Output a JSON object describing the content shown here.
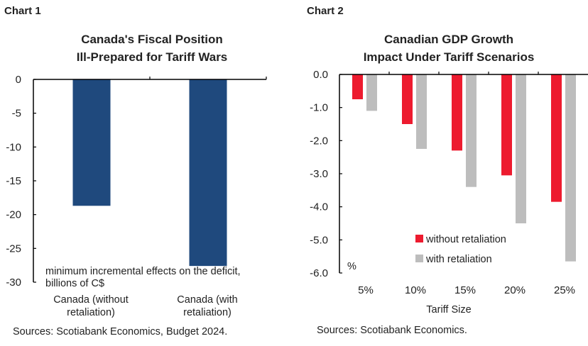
{
  "chart_data": [
    {
      "header": "Chart 1",
      "type": "bar",
      "title": [
        "Canada's Fiscal Position",
        "Ill-Prepared for Tariff Wars"
      ],
      "categories": [
        [
          "Canada (without",
          "retaliation)"
        ],
        [
          "Canada (with",
          "retaliation)"
        ]
      ],
      "values": [
        -18.7,
        -27.6
      ],
      "ylim": [
        -30,
        0
      ],
      "yticks": [
        "0",
        "-5",
        "-10",
        "-15",
        "-20",
        "-25",
        "-30"
      ],
      "ytick_values": [
        0,
        -5,
        -10,
        -15,
        -20,
        -25,
        -30
      ],
      "annotation": [
        "minimum incremental effects on the deficit,",
        "billions of C$"
      ],
      "grid": false,
      "color": "#1f497d",
      "source": "Sources: Scotiabank Economics, Budget 2024."
    },
    {
      "header": "Chart 2",
      "type": "bar",
      "title": [
        "Canadian GDP Growth",
        "Impact Under Tariff Scenarios"
      ],
      "categories": [
        "5%",
        "10%",
        "15%",
        "20%",
        "25%"
      ],
      "series": [
        {
          "name": "without retaliation",
          "values": [
            -0.75,
            -1.5,
            -2.3,
            -3.05,
            -3.85
          ],
          "color": "#ed1b2f"
        },
        {
          "name": "with retaliation",
          "values": [
            -1.1,
            -2.25,
            -3.4,
            -4.5,
            -5.65
          ],
          "color": "#bdbdbd"
        }
      ],
      "ylim": [
        -6,
        0
      ],
      "yticks": [
        "0.0",
        "-1.0",
        "-2.0",
        "-3.0",
        "-4.0",
        "-5.0",
        "-6.0"
      ],
      "ytick_values": [
        0,
        -1,
        -2,
        -3,
        -4,
        -5,
        -6
      ],
      "ylabel": "%",
      "xlabel": "Tariff Size",
      "legend": "bottom-center",
      "grid": false,
      "source": "Sources: Scotiabank Economics."
    }
  ]
}
